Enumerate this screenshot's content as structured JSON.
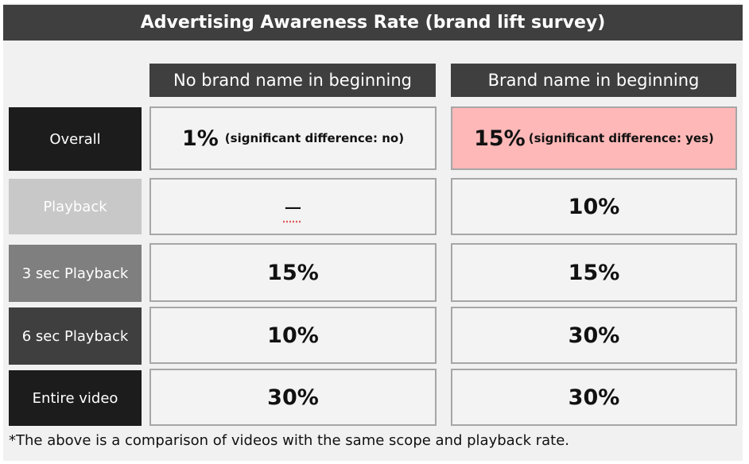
{
  "title": "Advertising Awareness Rate (brand lift survey)",
  "columns": [
    "No brand name in beginning",
    "Brand name in beginning"
  ],
  "rows": [
    {
      "label": "Overall",
      "label_bg": "#1c1c1c",
      "values": [
        "1%",
        "15%"
      ],
      "notes": [
        "(significant difference: no)",
        "(significant difference: yes)"
      ]
    },
    {
      "label": "Playback",
      "label_bg": "#c8c8c8",
      "values": [
        "ー",
        "10%"
      ],
      "notes": [
        "",
        ""
      ]
    },
    {
      "label": "3 sec Playback",
      "label_bg": "#7f7f7f",
      "values": [
        "15%",
        "15%"
      ],
      "notes": [
        "",
        ""
      ]
    },
    {
      "label": "6 sec Playback",
      "label_bg": "#3f3f3f",
      "values": [
        "10%",
        "30%"
      ],
      "notes": [
        "",
        ""
      ]
    },
    {
      "label": "Entire video",
      "label_bg": "#1c1c1c",
      "values": [
        "30%",
        "30%"
      ],
      "notes": [
        "",
        ""
      ]
    }
  ],
  "highlight_color": "#ffb8b8",
  "footnote": "*The above is a comparison of videos with the same scope and playback rate.",
  "chart_data": {
    "type": "table",
    "title": "Advertising Awareness Rate (brand lift survey)",
    "columns": [
      "No brand name in beginning",
      "Brand name in beginning"
    ],
    "row_labels": [
      "Overall",
      "Playback",
      "3 sec Playback",
      "6 sec Playback",
      "Entire video"
    ],
    "values": [
      [
        1,
        15
      ],
      [
        null,
        10
      ],
      [
        15,
        15
      ],
      [
        10,
        30
      ],
      [
        30,
        30
      ]
    ],
    "unit": "%",
    "significant_difference": [
      "no",
      "yes"
    ]
  }
}
